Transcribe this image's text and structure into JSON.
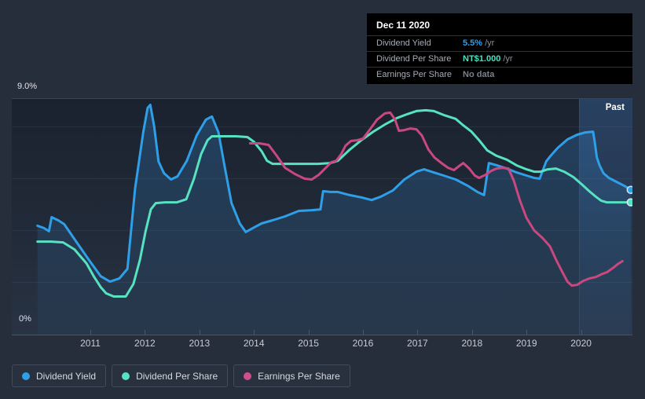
{
  "tooltip": {
    "date": "Dec 11 2020",
    "rows": [
      {
        "label": "Dividend Yield",
        "value": "5.5%",
        "suffix": "/yr",
        "color": "#2ba0f7"
      },
      {
        "label": "Dividend Per Share",
        "value": "NT$1.000",
        "suffix": "/yr",
        "color": "#45e3c2"
      },
      {
        "label": "Earnings Per Share",
        "value": "No data",
        "suffix": "",
        "color": "#7a818a"
      }
    ]
  },
  "legend": {
    "items": [
      {
        "label": "Dividend Yield",
        "color": "#2f9fe8"
      },
      {
        "label": "Dividend Per Share",
        "color": "#57e2c1"
      },
      {
        "label": "Earnings Per Share",
        "color": "#cf4f8e"
      }
    ]
  },
  "chart_data": {
    "type": "line",
    "title": "Dividend history chart",
    "past_label": "Past",
    "past_region_start": 2019.96,
    "x_range": [
      2010.0,
      2020.95
    ],
    "x_ticks": [
      2011,
      2012,
      2013,
      2014,
      2015,
      2016,
      2017,
      2018,
      2019,
      2020
    ],
    "y_axis": {
      "min": 0,
      "max": 9,
      "unit": "%",
      "top_label": "9.0%",
      "bottom_label": "0%",
      "grid_step": 2
    },
    "legend_position": "bottom-left",
    "series": [
      {
        "name": "Dividend Yield",
        "color": "#2f9fe8",
        "end_dot": true,
        "area_fill": true,
        "points": [
          [
            2010.03,
            4.17
          ],
          [
            2010.15,
            4.08
          ],
          [
            2010.24,
            3.96
          ],
          [
            2010.29,
            4.5
          ],
          [
            2010.41,
            4.38
          ],
          [
            2010.52,
            4.23
          ],
          [
            2010.74,
            3.56
          ],
          [
            2010.97,
            2.87
          ],
          [
            2011.19,
            2.23
          ],
          [
            2011.36,
            2.02
          ],
          [
            2011.53,
            2.14
          ],
          [
            2011.68,
            2.51
          ],
          [
            2011.82,
            5.59
          ],
          [
            2011.97,
            7.76
          ],
          [
            2012.05,
            8.7
          ],
          [
            2012.1,
            8.82
          ],
          [
            2012.17,
            8.0
          ],
          [
            2012.25,
            6.64
          ],
          [
            2012.35,
            6.19
          ],
          [
            2012.48,
            5.95
          ],
          [
            2012.6,
            6.07
          ],
          [
            2012.77,
            6.67
          ],
          [
            2012.95,
            7.64
          ],
          [
            2013.12,
            8.25
          ],
          [
            2013.23,
            8.37
          ],
          [
            2013.35,
            7.76
          ],
          [
            2013.46,
            6.49
          ],
          [
            2013.59,
            5.04
          ],
          [
            2013.74,
            4.26
          ],
          [
            2013.85,
            3.93
          ],
          [
            2013.98,
            4.08
          ],
          [
            2014.14,
            4.26
          ],
          [
            2014.34,
            4.38
          ],
          [
            2014.57,
            4.53
          ],
          [
            2014.82,
            4.74
          ],
          [
            2015.06,
            4.77
          ],
          [
            2015.22,
            4.8
          ],
          [
            2015.27,
            5.5
          ],
          [
            2015.4,
            5.47
          ],
          [
            2015.54,
            5.47
          ],
          [
            2015.76,
            5.35
          ],
          [
            2015.97,
            5.26
          ],
          [
            2016.16,
            5.16
          ],
          [
            2016.33,
            5.29
          ],
          [
            2016.55,
            5.53
          ],
          [
            2016.76,
            5.95
          ],
          [
            2016.98,
            6.25
          ],
          [
            2017.12,
            6.34
          ],
          [
            2017.3,
            6.22
          ],
          [
            2017.48,
            6.1
          ],
          [
            2017.7,
            5.95
          ],
          [
            2017.92,
            5.71
          ],
          [
            2018.1,
            5.47
          ],
          [
            2018.22,
            5.35
          ],
          [
            2018.26,
            5.89
          ],
          [
            2018.31,
            6.58
          ],
          [
            2018.46,
            6.49
          ],
          [
            2018.64,
            6.37
          ],
          [
            2018.82,
            6.22
          ],
          [
            2019.0,
            6.1
          ],
          [
            2019.14,
            6.01
          ],
          [
            2019.24,
            5.98
          ],
          [
            2019.28,
            6.19
          ],
          [
            2019.36,
            6.64
          ],
          [
            2019.43,
            6.83
          ],
          [
            2019.57,
            7.16
          ],
          [
            2019.75,
            7.49
          ],
          [
            2019.93,
            7.67
          ],
          [
            2020.08,
            7.76
          ],
          [
            2020.22,
            7.79
          ],
          [
            2020.25,
            7.4
          ],
          [
            2020.29,
            6.8
          ],
          [
            2020.34,
            6.49
          ],
          [
            2020.41,
            6.19
          ],
          [
            2020.51,
            6.01
          ],
          [
            2020.65,
            5.86
          ],
          [
            2020.8,
            5.7
          ],
          [
            2020.91,
            5.55
          ]
        ]
      },
      {
        "name": "Dividend Per Share",
        "color": "#57e2c1",
        "end_dot": true,
        "area_fill": false,
        "points": [
          [
            2010.03,
            3.56
          ],
          [
            2010.28,
            3.56
          ],
          [
            2010.5,
            3.53
          ],
          [
            2010.71,
            3.26
          ],
          [
            2010.93,
            2.72
          ],
          [
            2011.07,
            2.2
          ],
          [
            2011.19,
            1.81
          ],
          [
            2011.29,
            1.57
          ],
          [
            2011.43,
            1.45
          ],
          [
            2011.65,
            1.45
          ],
          [
            2011.79,
            1.93
          ],
          [
            2011.91,
            2.87
          ],
          [
            2012.01,
            3.93
          ],
          [
            2012.11,
            4.8
          ],
          [
            2012.2,
            5.04
          ],
          [
            2012.37,
            5.07
          ],
          [
            2012.59,
            5.07
          ],
          [
            2012.76,
            5.19
          ],
          [
            2012.9,
            5.98
          ],
          [
            2013.03,
            6.92
          ],
          [
            2013.15,
            7.46
          ],
          [
            2013.23,
            7.61
          ],
          [
            2013.45,
            7.61
          ],
          [
            2013.67,
            7.61
          ],
          [
            2013.88,
            7.58
          ],
          [
            2014.0,
            7.4
          ],
          [
            2014.14,
            7.04
          ],
          [
            2014.24,
            6.67
          ],
          [
            2014.34,
            6.55
          ],
          [
            2014.75,
            6.55
          ],
          [
            2015.18,
            6.55
          ],
          [
            2015.4,
            6.58
          ],
          [
            2015.54,
            6.67
          ],
          [
            2015.76,
            7.1
          ],
          [
            2015.97,
            7.46
          ],
          [
            2016.19,
            7.79
          ],
          [
            2016.4,
            8.06
          ],
          [
            2016.62,
            8.31
          ],
          [
            2016.81,
            8.46
          ],
          [
            2016.98,
            8.58
          ],
          [
            2017.15,
            8.61
          ],
          [
            2017.3,
            8.58
          ],
          [
            2017.48,
            8.43
          ],
          [
            2017.7,
            8.28
          ],
          [
            2017.84,
            8.03
          ],
          [
            2017.99,
            7.79
          ],
          [
            2018.13,
            7.46
          ],
          [
            2018.28,
            7.07
          ],
          [
            2018.45,
            6.86
          ],
          [
            2018.64,
            6.71
          ],
          [
            2018.82,
            6.49
          ],
          [
            2019.0,
            6.34
          ],
          [
            2019.14,
            6.25
          ],
          [
            2019.26,
            6.25
          ],
          [
            2019.39,
            6.34
          ],
          [
            2019.54,
            6.37
          ],
          [
            2019.69,
            6.25
          ],
          [
            2019.86,
            6.04
          ],
          [
            2020.01,
            5.77
          ],
          [
            2020.15,
            5.5
          ],
          [
            2020.27,
            5.29
          ],
          [
            2020.37,
            5.13
          ],
          [
            2020.47,
            5.07
          ],
          [
            2020.65,
            5.07
          ],
          [
            2020.91,
            5.07
          ]
        ]
      },
      {
        "name": "Earnings Per Share",
        "color": "#c9487f",
        "end_dot": false,
        "area_fill": false,
        "points": [
          [
            2013.93,
            7.34
          ],
          [
            2014.1,
            7.34
          ],
          [
            2014.27,
            7.28
          ],
          [
            2014.42,
            6.86
          ],
          [
            2014.57,
            6.4
          ],
          [
            2014.75,
            6.16
          ],
          [
            2014.93,
            5.98
          ],
          [
            2015.06,
            5.95
          ],
          [
            2015.19,
            6.13
          ],
          [
            2015.32,
            6.4
          ],
          [
            2015.42,
            6.61
          ],
          [
            2015.51,
            6.67
          ],
          [
            2015.6,
            6.92
          ],
          [
            2015.68,
            7.25
          ],
          [
            2015.78,
            7.43
          ],
          [
            2015.9,
            7.46
          ],
          [
            2016.0,
            7.52
          ],
          [
            2016.12,
            7.85
          ],
          [
            2016.26,
            8.25
          ],
          [
            2016.4,
            8.49
          ],
          [
            2016.5,
            8.52
          ],
          [
            2016.59,
            8.25
          ],
          [
            2016.66,
            7.82
          ],
          [
            2016.76,
            7.85
          ],
          [
            2016.87,
            7.91
          ],
          [
            2016.98,
            7.88
          ],
          [
            2017.08,
            7.64
          ],
          [
            2017.2,
            7.1
          ],
          [
            2017.31,
            6.8
          ],
          [
            2017.44,
            6.58
          ],
          [
            2017.56,
            6.4
          ],
          [
            2017.67,
            6.31
          ],
          [
            2017.76,
            6.46
          ],
          [
            2017.84,
            6.58
          ],
          [
            2017.95,
            6.37
          ],
          [
            2018.05,
            6.1
          ],
          [
            2018.13,
            6.01
          ],
          [
            2018.25,
            6.13
          ],
          [
            2018.35,
            6.28
          ],
          [
            2018.45,
            6.37
          ],
          [
            2018.56,
            6.4
          ],
          [
            2018.67,
            6.37
          ],
          [
            2018.77,
            5.89
          ],
          [
            2018.88,
            5.13
          ],
          [
            2019.0,
            4.47
          ],
          [
            2019.14,
            3.99
          ],
          [
            2019.29,
            3.71
          ],
          [
            2019.43,
            3.38
          ],
          [
            2019.54,
            2.87
          ],
          [
            2019.65,
            2.42
          ],
          [
            2019.75,
            2.02
          ],
          [
            2019.83,
            1.87
          ],
          [
            2019.93,
            1.9
          ],
          [
            2020.04,
            2.05
          ],
          [
            2020.15,
            2.14
          ],
          [
            2020.27,
            2.2
          ],
          [
            2020.37,
            2.3
          ],
          [
            2020.48,
            2.39
          ],
          [
            2020.58,
            2.54
          ],
          [
            2020.67,
            2.69
          ],
          [
            2020.76,
            2.81
          ]
        ]
      }
    ]
  }
}
